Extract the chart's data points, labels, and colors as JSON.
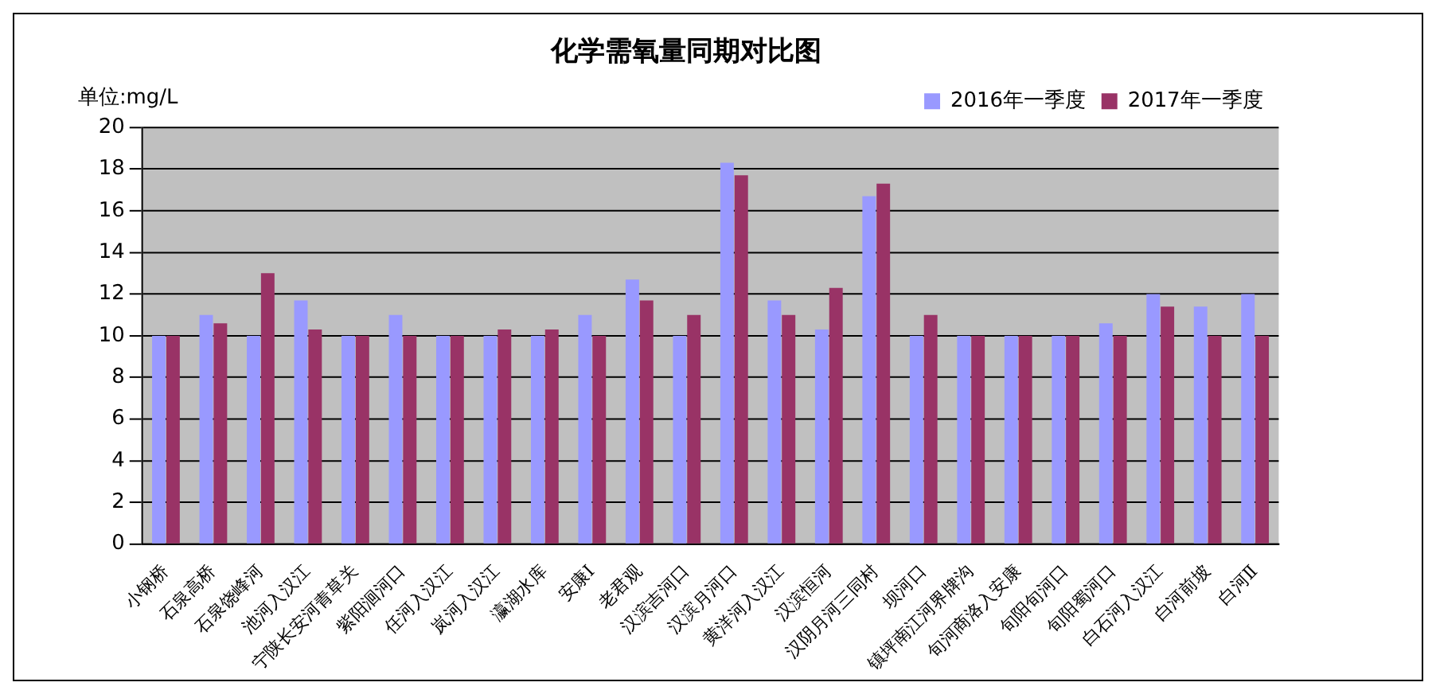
{
  "chart_data": {
    "type": "bar",
    "title": "化学需氧量同期对比图",
    "annotations": [
      "单位:mg/L"
    ],
    "categories": [
      "小钢桥",
      "石泉高桥",
      "石泉饶峰河",
      "池河入汉江",
      "宁陕长安河青草关",
      "紫阳洄河口",
      "任河入汉江",
      "岚河入汉江",
      "瀛湖水库",
      "安康Ⅰ",
      "老君观",
      "汉滨吉河口",
      "汉滨月河口",
      "黄洋河入汉江",
      "汉滨恒河",
      "汉阴月河三同村",
      "坝河口",
      "镇坪南江河界牌沟",
      "旬河商洛入安康",
      "旬阳旬河口",
      "旬阳蜀河口",
      "白石河入汉江",
      "白河前坡",
      "白河Ⅱ"
    ],
    "series": [
      {
        "name": "2016年一季度",
        "color": "#9999ff",
        "values": [
          10,
          11,
          10,
          11.7,
          10,
          11,
          10,
          10,
          10,
          11,
          12.7,
          10,
          18.3,
          11.7,
          10.3,
          16.7,
          10,
          10,
          10,
          10,
          10.6,
          12,
          11.4,
          12
        ]
      },
      {
        "name": "2017年一季度",
        "color": "#993366",
        "values": [
          10,
          10.6,
          13,
          10.3,
          10,
          10,
          10,
          10.3,
          10.3,
          10,
          11.7,
          11,
          17.7,
          11,
          12.3,
          17.3,
          11,
          10,
          10,
          10,
          10,
          11.4,
          10,
          10
        ]
      }
    ],
    "ylim": [
      0,
      20
    ],
    "yticks": [
      0,
      2,
      4,
      6,
      8,
      10,
      12,
      14,
      16,
      18,
      20
    ],
    "grid": "y",
    "legend": "top right"
  }
}
